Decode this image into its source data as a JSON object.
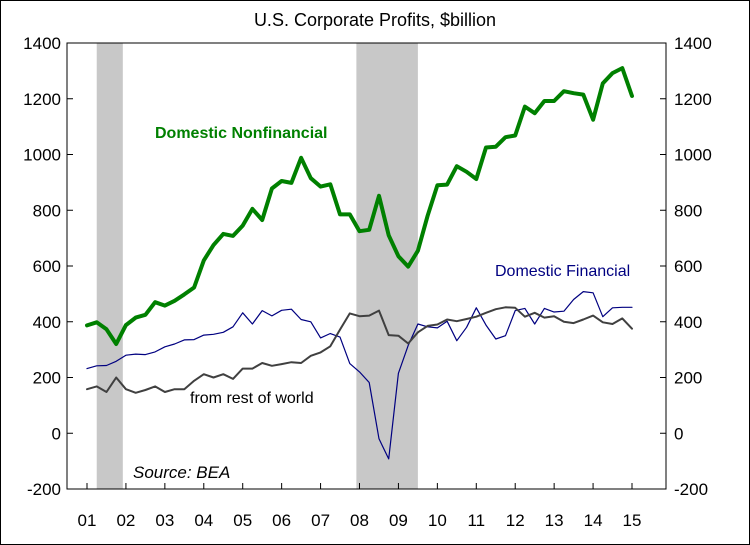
{
  "chart_data": {
    "type": "line",
    "title": "U.S. Corporate Profits, $billion",
    "source_note": "Source: BEA",
    "xlabel": "",
    "ylabel": "",
    "ylim": [
      -200,
      1400
    ],
    "y_ticks": [
      -200,
      0,
      200,
      400,
      600,
      800,
      1000,
      1200,
      1400
    ],
    "x_range": [
      2001.0,
      2015.5
    ],
    "x_ticks": [
      {
        "x": 2001.0,
        "label": "01"
      },
      {
        "x": 2002.0,
        "label": "02"
      },
      {
        "x": 2003.0,
        "label": "03"
      },
      {
        "x": 2004.0,
        "label": "04"
      },
      {
        "x": 2005.0,
        "label": "05"
      },
      {
        "x": 2006.0,
        "label": "06"
      },
      {
        "x": 2007.0,
        "label": "07"
      },
      {
        "x": 2008.0,
        "label": "08"
      },
      {
        "x": 2009.0,
        "label": "09"
      },
      {
        "x": 2010.0,
        "label": "10"
      },
      {
        "x": 2011.0,
        "label": "11"
      },
      {
        "x": 2012.0,
        "label": "12"
      },
      {
        "x": 2013.0,
        "label": "13"
      },
      {
        "x": 2014.0,
        "label": "14"
      },
      {
        "x": 2015.0,
        "label": "15"
      }
    ],
    "recessions": [
      {
        "start": 2001.25,
        "end": 2001.92
      },
      {
        "start": 2007.92,
        "end": 2009.5
      }
    ],
    "grid": false,
    "legend": "inline labels",
    "series": [
      {
        "name": "Domestic Nonfinancial",
        "color": "#008000",
        "x": [
          2001.0,
          2001.25,
          2001.5,
          2001.75,
          2002.0,
          2002.25,
          2002.5,
          2002.75,
          2003.0,
          2003.25,
          2003.5,
          2003.75,
          2004.0,
          2004.25,
          2004.5,
          2004.75,
          2005.0,
          2005.25,
          2005.5,
          2005.75,
          2006.0,
          2006.25,
          2006.5,
          2006.75,
          2007.0,
          2007.25,
          2007.5,
          2007.75,
          2008.0,
          2008.25,
          2008.5,
          2008.75,
          2009.0,
          2009.25,
          2009.5,
          2009.75,
          2010.0,
          2010.25,
          2010.5,
          2010.75,
          2011.0,
          2011.25,
          2011.5,
          2011.75,
          2012.0,
          2012.25,
          2012.5,
          2012.75,
          2013.0,
          2013.25,
          2013.5,
          2013.75,
          2014.0,
          2014.25,
          2014.5,
          2014.75,
          2015.0
        ],
        "values": [
          387,
          398,
          373,
          320,
          388,
          415,
          425,
          470,
          458,
          475,
          498,
          523,
          620,
          675,
          715,
          708,
          745,
          805,
          765,
          878,
          905,
          898,
          988,
          915,
          885,
          893,
          785,
          785,
          725,
          730,
          852,
          710,
          635,
          598,
          655,
          780,
          890,
          892,
          958,
          938,
          912,
          1025,
          1028,
          1062,
          1068,
          1172,
          1148,
          1192,
          1192,
          1227,
          1220,
          1215,
          1125,
          1255,
          1292,
          1310,
          1210
        ]
      },
      {
        "name": "Domestic Financial",
        "color": "#000080",
        "x": [
          2001.0,
          2001.25,
          2001.5,
          2001.75,
          2002.0,
          2002.25,
          2002.5,
          2002.75,
          2003.0,
          2003.25,
          2003.5,
          2003.75,
          2004.0,
          2004.25,
          2004.5,
          2004.75,
          2005.0,
          2005.25,
          2005.5,
          2005.75,
          2006.0,
          2006.25,
          2006.5,
          2006.75,
          2007.0,
          2007.25,
          2007.5,
          2007.75,
          2008.0,
          2008.25,
          2008.5,
          2008.75,
          2009.0,
          2009.25,
          2009.5,
          2009.75,
          2010.0,
          2010.25,
          2010.5,
          2010.75,
          2011.0,
          2011.25,
          2011.5,
          2011.75,
          2012.0,
          2012.25,
          2012.5,
          2012.75,
          2013.0,
          2013.25,
          2013.5,
          2013.75,
          2014.0,
          2014.25,
          2014.5,
          2014.75,
          2015.0
        ],
        "values": [
          232,
          242,
          243,
          258,
          280,
          284,
          282,
          292,
          310,
          320,
          335,
          336,
          352,
          355,
          362,
          382,
          432,
          392,
          440,
          421,
          441,
          445,
          408,
          400,
          342,
          358,
          345,
          250,
          220,
          182,
          -20,
          -92,
          215,
          315,
          392,
          382,
          378,
          402,
          332,
          380,
          450,
          388,
          338,
          350,
          440,
          448,
          392,
          448,
          435,
          438,
          480,
          508,
          504,
          418,
          450,
          452,
          452
        ]
      },
      {
        "name": "from rest of world",
        "color": "#404040",
        "x": [
          2001.0,
          2001.25,
          2001.5,
          2001.75,
          2002.0,
          2002.25,
          2002.5,
          2002.75,
          2003.0,
          2003.25,
          2003.5,
          2003.75,
          2004.0,
          2004.25,
          2004.5,
          2004.75,
          2005.0,
          2005.25,
          2005.5,
          2005.75,
          2006.0,
          2006.25,
          2006.5,
          2006.75,
          2007.0,
          2007.25,
          2007.5,
          2007.75,
          2008.0,
          2008.25,
          2008.5,
          2008.75,
          2009.0,
          2009.25,
          2009.5,
          2009.75,
          2010.0,
          2010.25,
          2010.5,
          2010.75,
          2011.0,
          2011.25,
          2011.5,
          2011.75,
          2012.0,
          2012.25,
          2012.5,
          2012.75,
          2013.0,
          2013.25,
          2013.5,
          2013.75,
          2014.0,
          2014.25,
          2014.5,
          2014.75,
          2015.0
        ],
        "values": [
          158,
          168,
          148,
          200,
          158,
          145,
          155,
          168,
          148,
          158,
          158,
          188,
          212,
          200,
          212,
          195,
          232,
          232,
          252,
          242,
          248,
          255,
          252,
          278,
          290,
          312,
          372,
          430,
          420,
          422,
          440,
          352,
          350,
          322,
          362,
          385,
          390,
          408,
          402,
          410,
          418,
          432,
          445,
          452,
          450,
          418,
          432,
          415,
          420,
          400,
          395,
          408,
          422,
          398,
          392,
          412,
          375
        ]
      }
    ],
    "annotations": {
      "nonfinancial_label": "Domestic Nonfinancial",
      "financial_label": "Domestic Financial",
      "rest_of_world_label": "from rest of world"
    }
  }
}
